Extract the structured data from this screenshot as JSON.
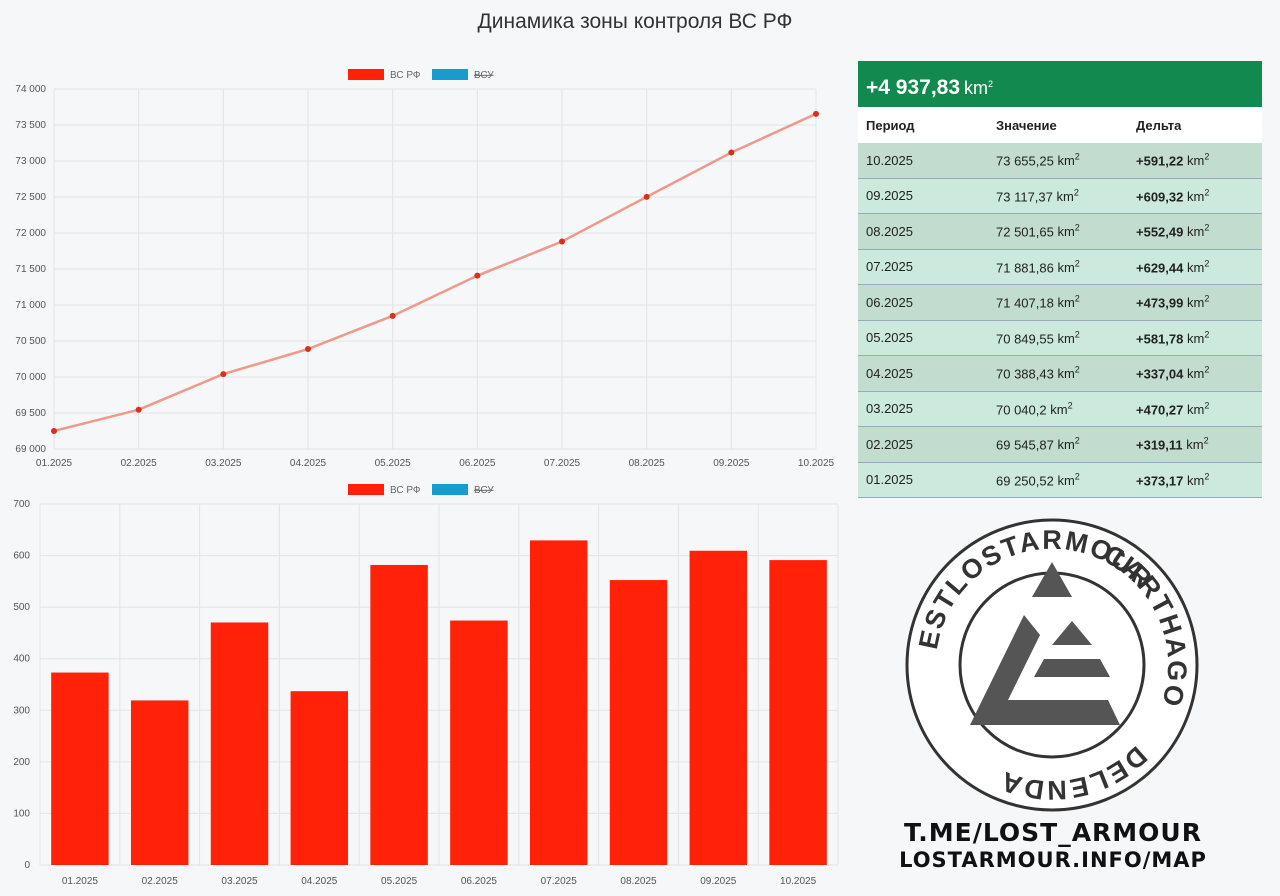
{
  "page_title": "Динамика зоны контроля ВС РФ",
  "colors": {
    "series_ru": "#ff2208",
    "series_ua": "#1a9bd0",
    "line": "#f0988a",
    "table_header": "#12894f"
  },
  "legend": [
    {
      "name": "ВС РФ",
      "color": "#ff2208",
      "hidden": false
    },
    {
      "name": "ВСУ",
      "color": "#1a9bd0",
      "hidden": true
    }
  ],
  "chart_data": [
    {
      "type": "line",
      "categories": [
        "01.2025",
        "02.2025",
        "03.2025",
        "04.2025",
        "05.2025",
        "06.2025",
        "07.2025",
        "08.2025",
        "09.2025",
        "10.2025"
      ],
      "series": [
        {
          "name": "ВС РФ",
          "values": [
            69250.52,
            69545.87,
            70040.2,
            70388.43,
            70849.55,
            71407.18,
            71881.86,
            72501.65,
            73117.37,
            73655.25
          ]
        }
      ],
      "yticks": [
        "69 000",
        "69 500",
        "70 000",
        "70 500",
        "71 000",
        "71 500",
        "72 000",
        "72 500",
        "73 000",
        "73 500",
        "74 000"
      ],
      "ylim": [
        69000,
        74000
      ],
      "grid": true,
      "legend_position": "top"
    },
    {
      "type": "bar",
      "categories": [
        "01.2025",
        "02.2025",
        "03.2025",
        "04.2025",
        "05.2025",
        "06.2025",
        "07.2025",
        "08.2025",
        "09.2025",
        "10.2025"
      ],
      "series": [
        {
          "name": "ВС РФ",
          "values": [
            373.17,
            319.11,
            470.27,
            337.04,
            581.78,
            473.99,
            629.44,
            552.49,
            609.32,
            591.22
          ]
        }
      ],
      "yticks": [
        "0",
        "100",
        "200",
        "300",
        "400",
        "500",
        "600",
        "700"
      ],
      "ylim": [
        0,
        700
      ],
      "grid": true,
      "legend_position": "top"
    }
  ],
  "table": {
    "total": "+4 937,83",
    "unit": "km",
    "unit_exp": "2",
    "headers": [
      "Период",
      "Значение",
      "Дельта"
    ],
    "rows": [
      {
        "period": "10.2025",
        "value": "73 655,25",
        "delta": "+591,22"
      },
      {
        "period": "09.2025",
        "value": "73 117,37",
        "delta": "+609,32"
      },
      {
        "period": "08.2025",
        "value": "72 501,65",
        "delta": "+552,49"
      },
      {
        "period": "07.2025",
        "value": "71 881,86",
        "delta": "+629,44"
      },
      {
        "period": "06.2025",
        "value": "71 407,18",
        "delta": "+473,99"
      },
      {
        "period": "05.2025",
        "value": "70 849,55",
        "delta": "+581,78"
      },
      {
        "period": "04.2025",
        "value": "70 388,43",
        "delta": "+337,04"
      },
      {
        "period": "03.2025",
        "value": "70 040,2",
        "delta": "+470,27"
      },
      {
        "period": "02.2025",
        "value": "69 545,87",
        "delta": "+319,11"
      },
      {
        "period": "01.2025",
        "value": "69 250,52",
        "delta": "+373,17"
      }
    ]
  },
  "logo": {
    "ring_text_top": "LOSTARMOUR",
    "ring_text_right": "CARTHAGO",
    "ring_text_bottom": "DELENDA",
    "ring_text_left": "EST"
  },
  "brand": {
    "line1": "T.ME/LOST_ARMOUR",
    "line2": "LOSTARMOUR.INFO/MAP"
  }
}
